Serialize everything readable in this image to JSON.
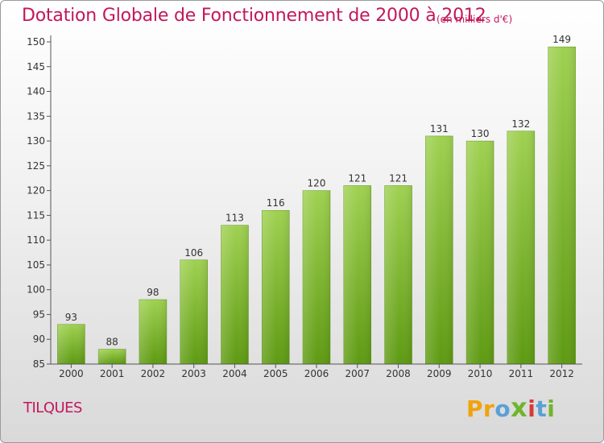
{
  "header": {
    "title": "Dotation Globale de Fonctionnement de 2000 à 2012",
    "subtitle": "(en milliers d'€)"
  },
  "footer": {
    "commune": "TILQUES",
    "logo": [
      "P",
      "r",
      "o",
      "x",
      "i",
      "t",
      "i"
    ]
  },
  "colors": {
    "title": "#c2185b",
    "bar_top": "#9fd151",
    "bar_bottom": "#5e9a12",
    "logo": [
      "#f0a30a",
      "#f0a30a",
      "#5aa0d6",
      "#6fb52c",
      "#d63a3a",
      "#5aa0d6",
      "#6fb52c"
    ]
  },
  "chart_data": {
    "type": "bar",
    "title": "Dotation Globale de Fonctionnement de 2000 à 2012",
    "subtitle": "(en milliers d'€)",
    "categories": [
      "2000",
      "2001",
      "2002",
      "2003",
      "2004",
      "2005",
      "2006",
      "2007",
      "2008",
      "2009",
      "2010",
      "2011",
      "2012"
    ],
    "values": [
      93,
      88,
      98,
      106,
      113,
      116,
      120,
      121,
      121,
      131,
      130,
      132,
      149
    ],
    "xlabel": "",
    "ylabel": "",
    "ylim": [
      85,
      150
    ],
    "yticks": [
      85,
      90,
      95,
      100,
      105,
      110,
      115,
      120,
      125,
      130,
      135,
      140,
      145,
      150
    ],
    "grid": false,
    "legend": "none"
  }
}
